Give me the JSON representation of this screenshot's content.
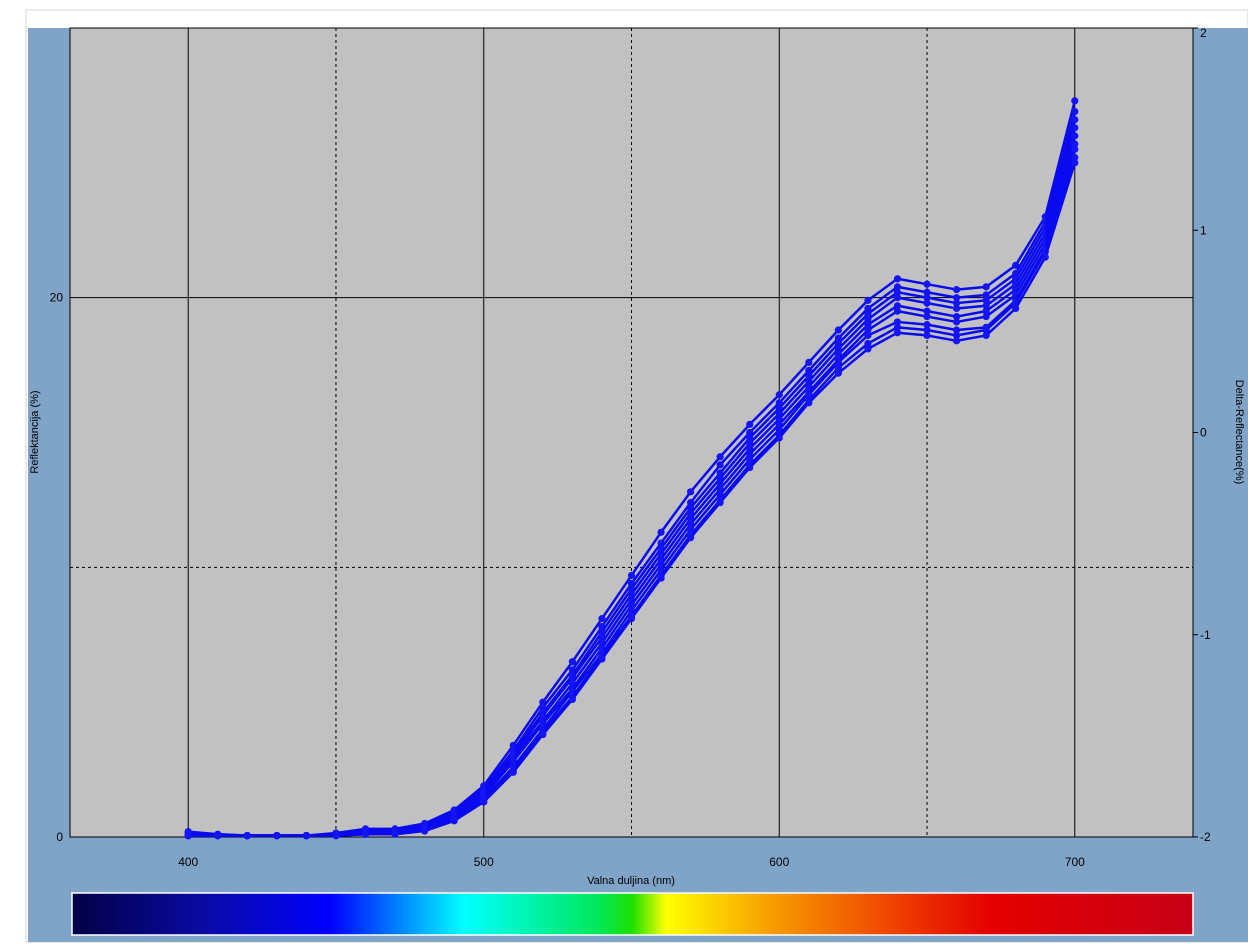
{
  "chart_data": {
    "type": "line",
    "title": "",
    "xlabel": "Valna duljina (nm)",
    "ylabel": "Reflektancija (%)",
    "y2label": "Delta-Reflectance(%)",
    "xlim": [
      360,
      740
    ],
    "ylim": [
      0,
      30
    ],
    "y2lim": [
      -2,
      2
    ],
    "x_ticks": [
      400,
      500,
      600,
      700
    ],
    "y_ticks": [
      0,
      20
    ],
    "y2_ticks": [
      -2,
      -1,
      0,
      1,
      2
    ],
    "grid": true,
    "legend": "none",
    "x": [
      400,
      410,
      420,
      430,
      440,
      450,
      460,
      470,
      480,
      490,
      500,
      510,
      520,
      530,
      540,
      550,
      560,
      570,
      580,
      590,
      600,
      610,
      620,
      630,
      640,
      650,
      660,
      670,
      680,
      690,
      700
    ],
    "series": [
      {
        "values": [
          0.2,
          0.1,
          0.05,
          0.05,
          0.05,
          0.15,
          0.3,
          0.3,
          0.5,
          1.0,
          1.9,
          3.4,
          5.0,
          6.5,
          8.1,
          9.7,
          11.3,
          12.8,
          14.1,
          15.3,
          16.4,
          17.6,
          18.8,
          19.9,
          20.7,
          20.5,
          20.3,
          20.4,
          21.2,
          23.0,
          27.3
        ]
      },
      {
        "values": [
          0.15,
          0.1,
          0.05,
          0.05,
          0.05,
          0.12,
          0.25,
          0.28,
          0.45,
          0.95,
          1.8,
          3.2,
          4.8,
          6.2,
          7.8,
          9.4,
          10.9,
          12.4,
          13.8,
          15.0,
          16.1,
          17.3,
          18.5,
          19.6,
          20.4,
          20.2,
          20.0,
          20.1,
          20.9,
          22.8,
          26.9
        ]
      },
      {
        "values": [
          0.1,
          0.08,
          0.05,
          0.05,
          0.05,
          0.1,
          0.22,
          0.25,
          0.42,
          0.9,
          1.75,
          3.1,
          4.6,
          6.0,
          7.6,
          9.2,
          10.7,
          12.2,
          13.5,
          14.8,
          15.9,
          17.1,
          18.3,
          19.4,
          20.2,
          20.0,
          19.8,
          19.9,
          20.7,
          22.6,
          26.6
        ]
      },
      {
        "values": [
          0.05,
          0.05,
          0.05,
          0.05,
          0.05,
          0.08,
          0.2,
          0.22,
          0.4,
          0.85,
          1.7,
          3.0,
          4.5,
          5.9,
          7.4,
          9.0,
          10.5,
          12.0,
          13.3,
          14.6,
          15.7,
          16.9,
          18.1,
          19.2,
          20.0,
          19.8,
          19.6,
          19.7,
          20.5,
          22.4,
          26.3
        ]
      },
      {
        "values": [
          0.05,
          0.05,
          0.05,
          0.05,
          0.05,
          0.07,
          0.18,
          0.2,
          0.38,
          0.8,
          1.6,
          2.9,
          4.3,
          5.7,
          7.2,
          8.8,
          10.3,
          11.8,
          13.1,
          14.4,
          15.5,
          16.7,
          17.9,
          19.0,
          19.7,
          19.5,
          19.3,
          19.5,
          20.3,
          22.2,
          26.0
        ]
      },
      {
        "values": [
          0.05,
          0.05,
          0.05,
          0.05,
          0.05,
          0.06,
          0.15,
          0.18,
          0.35,
          0.75,
          1.5,
          2.8,
          4.2,
          5.5,
          7.0,
          8.6,
          10.1,
          11.6,
          12.9,
          14.2,
          15.3,
          16.5,
          17.7,
          18.8,
          19.5,
          19.3,
          19.1,
          19.3,
          20.1,
          22.0,
          25.7
        ]
      },
      {
        "values": [
          0.05,
          0.05,
          0.05,
          0.05,
          0.05,
          0.05,
          0.12,
          0.15,
          0.3,
          0.7,
          1.4,
          2.6,
          4.0,
          5.4,
          6.8,
          8.4,
          9.9,
          11.4,
          12.7,
          14.0,
          15.1,
          16.4,
          17.6,
          18.6,
          19.1,
          19.0,
          18.8,
          18.9,
          19.9,
          21.8,
          25.5
        ]
      },
      {
        "values": [
          0.05,
          0.05,
          0.05,
          0.05,
          0.05,
          0.05,
          0.1,
          0.12,
          0.25,
          0.65,
          1.3,
          2.5,
          3.9,
          5.2,
          6.7,
          8.2,
          9.7,
          11.2,
          12.5,
          13.8,
          14.9,
          16.2,
          17.4,
          18.3,
          18.9,
          18.8,
          18.6,
          18.8,
          19.8,
          21.7,
          25.2
        ]
      },
      {
        "values": [
          0.05,
          0.05,
          0.05,
          0.05,
          0.05,
          0.05,
          0.1,
          0.1,
          0.22,
          0.6,
          1.3,
          2.4,
          3.8,
          5.1,
          6.6,
          8.1,
          9.6,
          11.1,
          12.4,
          13.7,
          14.8,
          16.1,
          17.2,
          18.1,
          18.7,
          18.6,
          18.4,
          18.6,
          19.6,
          21.5,
          25.0
        ]
      }
    ]
  }
}
